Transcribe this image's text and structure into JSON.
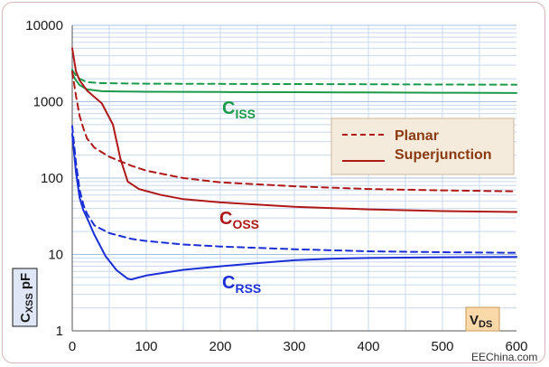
{
  "chart_data": {
    "type": "line",
    "yscale": "log",
    "xlim": [
      0,
      600
    ],
    "ylim": [
      1,
      10000
    ],
    "x_ticks": [
      0,
      100,
      200,
      300,
      400,
      500,
      600
    ],
    "y_ticks": [
      1,
      10,
      100,
      1000,
      10000
    ],
    "xlabel_main": "V",
    "xlabel_sub": "DS",
    "ylabel_main": "C",
    "ylabel_sub": "XSS",
    "ylabel_unit": "pF",
    "grid": true,
    "legend_position": "right",
    "legend": [
      {
        "label": "Planar",
        "style": "dashed"
      },
      {
        "label": "Superjunction",
        "style": "solid"
      }
    ],
    "annotations": [
      {
        "main": "C",
        "sub": "ISS",
        "color": "#1a9a4a"
      },
      {
        "main": "C",
        "sub": "OSS",
        "color": "#b01818"
      },
      {
        "main": "C",
        "sub": "RSS",
        "color": "#1a2fd6"
      }
    ],
    "series": [
      {
        "group": "ISS",
        "kind": "Planar",
        "color": "#1a9a4a",
        "dash": true,
        "points": [
          [
            0,
            2600
          ],
          [
            5,
            2200
          ],
          [
            10,
            2000
          ],
          [
            20,
            1800
          ],
          [
            40,
            1750
          ],
          [
            100,
            1720
          ],
          [
            200,
            1710
          ],
          [
            300,
            1700
          ],
          [
            400,
            1690
          ],
          [
            500,
            1680
          ],
          [
            600,
            1670
          ]
        ]
      },
      {
        "group": "ISS",
        "kind": "Superjunction",
        "color": "#1a9a4a",
        "dash": false,
        "points": [
          [
            0,
            2300
          ],
          [
            5,
            1900
          ],
          [
            10,
            1650
          ],
          [
            20,
            1450
          ],
          [
            40,
            1370
          ],
          [
            100,
            1350
          ],
          [
            200,
            1340
          ],
          [
            300,
            1330
          ],
          [
            400,
            1320
          ],
          [
            500,
            1310
          ],
          [
            600,
            1300
          ]
        ]
      },
      {
        "group": "OSS",
        "kind": "Planar",
        "color": "#b01818",
        "dash": true,
        "points": [
          [
            0,
            2500
          ],
          [
            5,
            1200
          ],
          [
            10,
            650
          ],
          [
            15,
            450
          ],
          [
            20,
            330
          ],
          [
            30,
            250
          ],
          [
            50,
            190
          ],
          [
            80,
            145
          ],
          [
            100,
            125
          ],
          [
            150,
            100
          ],
          [
            200,
            88
          ],
          [
            300,
            78
          ],
          [
            400,
            72
          ],
          [
            500,
            69
          ],
          [
            600,
            67
          ]
        ]
      },
      {
        "group": "OSS",
        "kind": "Superjunction",
        "color": "#b01818",
        "dash": false,
        "points": [
          [
            0,
            5000
          ],
          [
            5,
            2500
          ],
          [
            10,
            1900
          ],
          [
            20,
            1400
          ],
          [
            40,
            950
          ],
          [
            55,
            500
          ],
          [
            65,
            180
          ],
          [
            75,
            90
          ],
          [
            90,
            72
          ],
          [
            120,
            60
          ],
          [
            150,
            53
          ],
          [
            200,
            48
          ],
          [
            300,
            42
          ],
          [
            400,
            39
          ],
          [
            500,
            37
          ],
          [
            600,
            36
          ]
        ]
      },
      {
        "group": "RSS",
        "kind": "Planar",
        "color": "#1a2fd6",
        "dash": true,
        "points": [
          [
            0,
            480
          ],
          [
            5,
            160
          ],
          [
            10,
            70
          ],
          [
            15,
            45
          ],
          [
            20,
            34
          ],
          [
            30,
            24
          ],
          [
            50,
            19
          ],
          [
            80,
            16
          ],
          [
            100,
            15
          ],
          [
            150,
            13.5
          ],
          [
            200,
            12.7
          ],
          [
            300,
            11.7
          ],
          [
            400,
            11
          ],
          [
            500,
            10.7
          ],
          [
            600,
            10.5
          ]
        ]
      },
      {
        "group": "RSS",
        "kind": "Superjunction",
        "color": "#1a2fd6",
        "dash": false,
        "points": [
          [
            0,
            380
          ],
          [
            5,
            120
          ],
          [
            10,
            55
          ],
          [
            15,
            38
          ],
          [
            20,
            30
          ],
          [
            30,
            18
          ],
          [
            45,
            9.5
          ],
          [
            60,
            6.2
          ],
          [
            75,
            4.8
          ],
          [
            80,
            4.7
          ],
          [
            90,
            5.0
          ],
          [
            100,
            5.3
          ],
          [
            150,
            6.3
          ],
          [
            200,
            7.0
          ],
          [
            250,
            7.7
          ],
          [
            300,
            8.4
          ],
          [
            350,
            8.8
          ],
          [
            400,
            9.0
          ],
          [
            500,
            9.2
          ],
          [
            600,
            9.3
          ]
        ]
      }
    ]
  },
  "watermark": "EEChina.com"
}
